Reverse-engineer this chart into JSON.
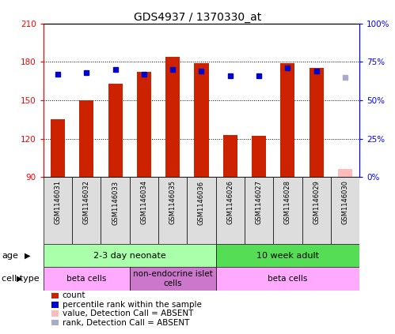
{
  "title": "GDS4937 / 1370330_at",
  "samples": [
    "GSM1146031",
    "GSM1146032",
    "GSM1146033",
    "GSM1146034",
    "GSM1146035",
    "GSM1146036",
    "GSM1146026",
    "GSM1146027",
    "GSM1146028",
    "GSM1146029",
    "GSM1146030"
  ],
  "count_values": [
    135,
    150,
    163,
    172,
    184,
    179,
    123,
    122,
    179,
    175,
    null
  ],
  "rank_values": [
    67,
    68,
    70,
    67,
    70,
    69,
    66,
    66,
    71,
    69,
    null
  ],
  "absent_count": [
    null,
    null,
    null,
    null,
    null,
    null,
    null,
    null,
    null,
    null,
    96
  ],
  "absent_rank": [
    null,
    null,
    null,
    null,
    null,
    null,
    null,
    null,
    null,
    null,
    65
  ],
  "ylim_left": [
    90,
    210
  ],
  "ylim_right": [
    0,
    100
  ],
  "yticks_left": [
    90,
    120,
    150,
    180,
    210
  ],
  "yticks_right": [
    0,
    25,
    50,
    75,
    100
  ],
  "ytick_labels_right": [
    "0%",
    "25%",
    "50%",
    "75%",
    "100%"
  ],
  "hlines": [
    120,
    150,
    180
  ],
  "bar_color": "#cc2200",
  "rank_color": "#0000cc",
  "absent_bar_color": "#ffbbbb",
  "absent_rank_color": "#aaaacc",
  "bar_width": 0.5,
  "age_groups": [
    {
      "label": "2-3 day neonate",
      "start": 0,
      "end": 6,
      "color": "#aaffaa"
    },
    {
      "label": "10 week adult",
      "start": 6,
      "end": 11,
      "color": "#55dd55"
    }
  ],
  "cell_type_groups": [
    {
      "label": "beta cells",
      "start": 0,
      "end": 3,
      "color": "#ffaaff"
    },
    {
      "label": "non-endocrine islet\ncells",
      "start": 3,
      "end": 6,
      "color": "#cc77cc"
    },
    {
      "label": "beta cells",
      "start": 6,
      "end": 11,
      "color": "#ffaaff"
    }
  ],
  "age_label": "age",
  "cell_type_label": "cell type",
  "legend_items": [
    {
      "label": "count",
      "color": "#cc2200"
    },
    {
      "label": "percentile rank within the sample",
      "color": "#0000cc"
    },
    {
      "label": "value, Detection Call = ABSENT",
      "color": "#ffbbbb"
    },
    {
      "label": "rank, Detection Call = ABSENT",
      "color": "#aaaacc"
    }
  ],
  "title_fontsize": 10,
  "tick_fontsize": 7.5,
  "label_fontsize": 8
}
